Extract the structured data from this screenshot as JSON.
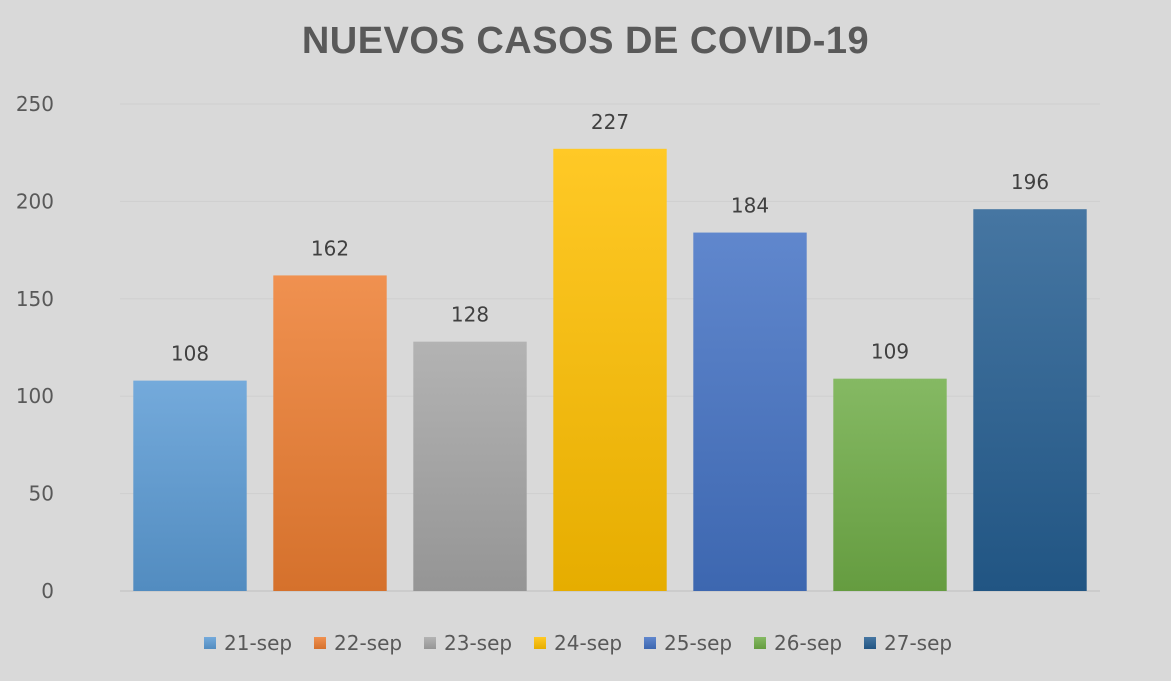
{
  "chart_data": {
    "type": "bar",
    "title": "NUEVOS CASOS DE COVID-19",
    "categories": [
      "21-sep",
      "22-sep",
      "23-sep",
      "24-sep",
      "25-sep",
      "26-sep",
      "27-sep"
    ],
    "values": [
      108,
      162,
      128,
      227,
      184,
      109,
      196
    ],
    "colors": [
      "#5b9bd5",
      "#ed7d31",
      "#a5a5a5",
      "#ffc000",
      "#4472c4",
      "#70ad47",
      "#255e91"
    ],
    "ylim": [
      0,
      250
    ],
    "yticks": [
      0,
      50,
      100,
      150,
      200,
      250
    ],
    "xlabel": "",
    "ylabel": "",
    "grid": true,
    "legend": "bottom",
    "data_labels": true
  }
}
